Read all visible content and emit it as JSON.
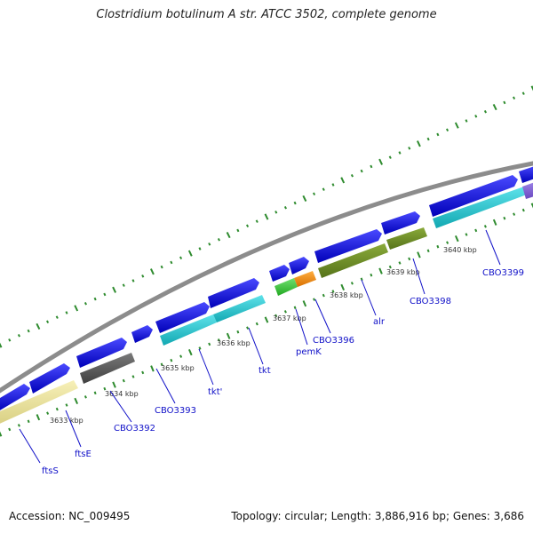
{
  "title": "Clostridium botulinum A str. ATCC 3502, complete genome",
  "accession_text": "Accession: NC_009495",
  "summary_text": "Topology: circular; Length: 3,886,916 bp; Genes: 3,686",
  "colors": {
    "backbone": "#8c8c8c",
    "forward_cds": "#1010e0",
    "tick": "#2e8b2e",
    "label": "#1010c8",
    "scale_label": "#333333"
  },
  "scale_labels": [
    "3633 kbp",
    "3634 kbp",
    "3635 kbp",
    "3636 kbp",
    "3637 kbp",
    "3638 kbp",
    "3639 kbp",
    "3640 kbp"
  ],
  "feature_labels": [
    "ftsS",
    "ftsE",
    "CBO3392",
    "CBO3393",
    "tkt'",
    "tkt",
    "pemK",
    "CBO3396",
    "alr",
    "CBO3398",
    "CBO3399"
  ],
  "track_colors": {
    "yellow": "#f0e8a0",
    "gray": "#5a5a5a",
    "cyan": "#20c8d0",
    "green": "#40c840",
    "orange": "#f08c10",
    "olive": "#6b8c23",
    "purple": "#8060d0"
  }
}
